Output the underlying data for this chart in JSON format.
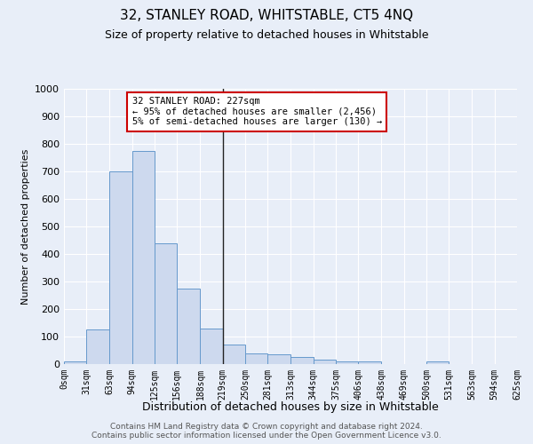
{
  "title": "32, STANLEY ROAD, WHITSTABLE, CT5 4NQ",
  "subtitle": "Size of property relative to detached houses in Whitstable",
  "xlabel": "Distribution of detached houses by size in Whitstable",
  "ylabel": "Number of detached properties",
  "bar_color": "#cdd9ee",
  "bar_edge_color": "#6699cc",
  "background_color": "#e8eef8",
  "grid_color": "#ffffff",
  "bin_edges": [
    0,
    31,
    63,
    94,
    125,
    156,
    188,
    219,
    250,
    281,
    313,
    344,
    375,
    406,
    438,
    469,
    500,
    531,
    563,
    594,
    625
  ],
  "bar_heights": [
    10,
    125,
    700,
    775,
    440,
    275,
    130,
    70,
    40,
    35,
    25,
    15,
    10,
    10,
    0,
    0,
    10,
    0,
    0,
    0
  ],
  "vline_x": 219,
  "vline_color": "#222222",
  "ylim": [
    0,
    1000
  ],
  "yticks": [
    0,
    100,
    200,
    300,
    400,
    500,
    600,
    700,
    800,
    900,
    1000
  ],
  "annotation_text": "32 STANLEY ROAD: 227sqm\n← 95% of detached houses are smaller (2,456)\n5% of semi-detached houses are larger (130) →",
  "annotation_box_color": "#ffffff",
  "annotation_border_color": "#cc0000",
  "footer_text": "Contains HM Land Registry data © Crown copyright and database right 2024.\nContains public sector information licensed under the Open Government Licence v3.0.",
  "tick_labels": [
    "0sqm",
    "31sqm",
    "63sqm",
    "94sqm",
    "125sqm",
    "156sqm",
    "188sqm",
    "219sqm",
    "250sqm",
    "281sqm",
    "313sqm",
    "344sqm",
    "375sqm",
    "406sqm",
    "438sqm",
    "469sqm",
    "500sqm",
    "531sqm",
    "563sqm",
    "594sqm",
    "625sqm"
  ],
  "title_fontsize": 11,
  "subtitle_fontsize": 9,
  "ylabel_fontsize": 8,
  "xlabel_fontsize": 9,
  "ytick_fontsize": 8,
  "xtick_fontsize": 7
}
